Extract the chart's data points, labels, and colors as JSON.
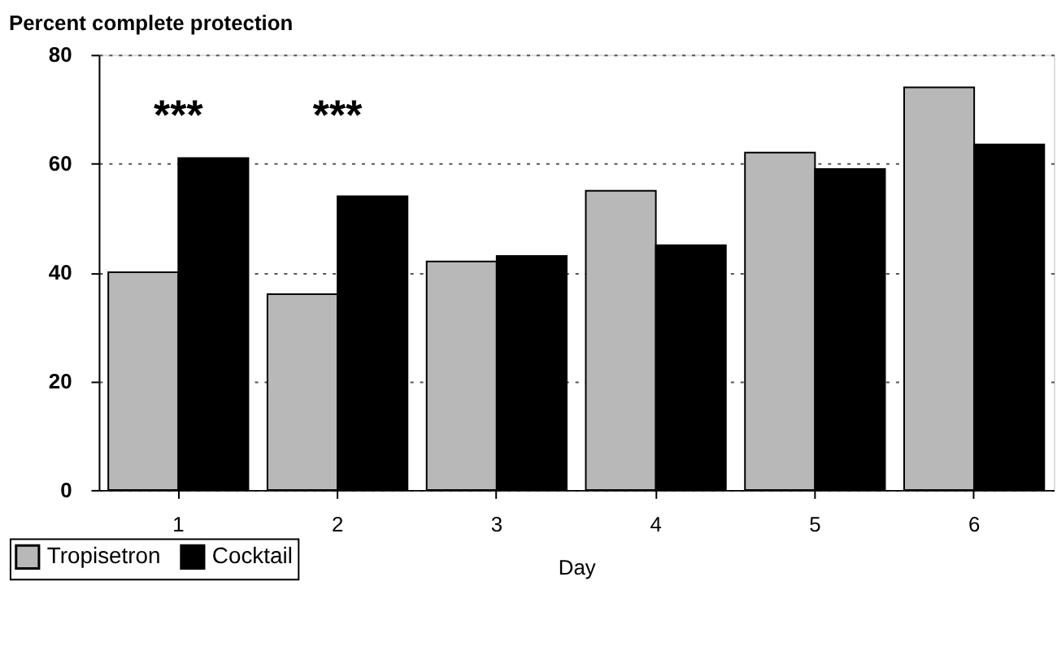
{
  "chart_data": {
    "type": "bar",
    "ylabel": "Percent complete protection",
    "xlabel": "Day",
    "categories": [
      "1",
      "2",
      "3",
      "4",
      "5",
      "6"
    ],
    "series": [
      {
        "name": "Tropisetron",
        "color": "#b8b8b8",
        "values": [
          40,
          36,
          42,
          55,
          62,
          74
        ]
      },
      {
        "name": "Cocktail",
        "color": "#000000",
        "values": [
          61,
          54,
          43,
          45,
          59,
          63.5
        ]
      }
    ],
    "ylim": [
      0,
      80
    ],
    "yticks": [
      0,
      20,
      40,
      60,
      80
    ],
    "grid": "y",
    "legend": "bottom left",
    "annotations": [
      "***",
      "***"
    ]
  }
}
